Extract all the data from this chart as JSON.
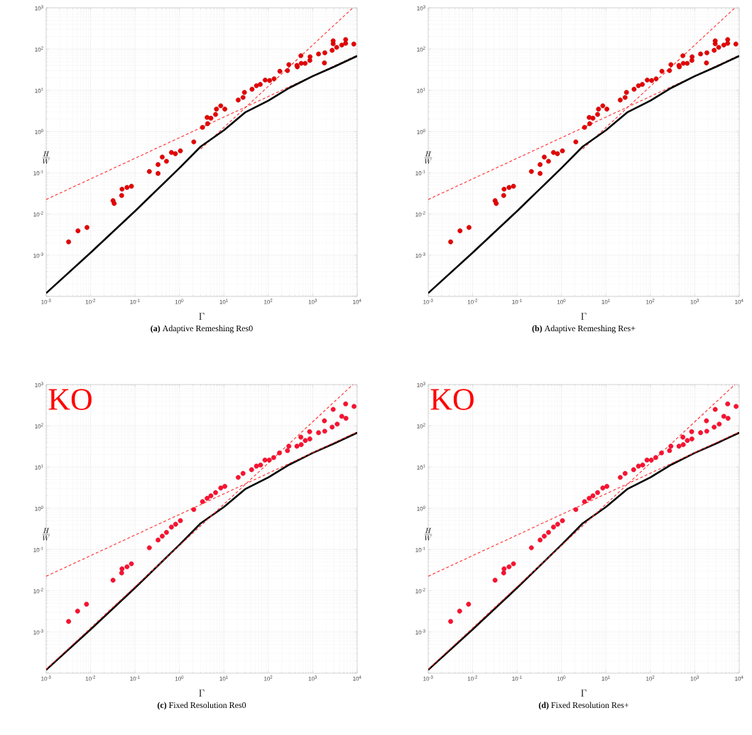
{
  "chart_data": [
    {
      "type": "scatter",
      "title": "**(a)** Adaptive Remeshing Res0",
      "xlabel": "\\Gamma",
      "ylabel": "\\frac{H}{W}",
      "log": "xy",
      "grid": true,
      "marker": "circle",
      "xlim": [
        0.001,
        10000
      ],
      "ylim": [
        0.0001,
        1000
      ],
      "xticks": [
        {
          "value": 0.001,
          "label": "10$^{-3}$"
        },
        {
          "value": 0.01,
          "label": "10$^{-2}$"
        },
        {
          "value": 0.1,
          "label": "10$^{-1}$"
        },
        {
          "value": 1,
          "label": "10$^{0}$"
        },
        {
          "value": 10,
          "label": "10$^{1}$"
        },
        {
          "value": 100,
          "label": "10$^{2}$"
        },
        {
          "value": 1000,
          "label": "10$^{3}$"
        },
        {
          "value": 10000,
          "label": "10$^{4}$"
        }
      ],
      "yticks": [
        {
          "value": 0.0001,
          "label": null
        },
        {
          "value": 0.001,
          "label": "10$^{-3}$"
        },
        {
          "value": 0.01,
          "label": "10$^{-2}$"
        },
        {
          "value": 0.1,
          "label": "10$^{-1}$"
        },
        {
          "value": 1,
          "label": "10$^{0}$"
        },
        {
          "value": 10,
          "label": "10$^{1}$"
        },
        {
          "value": 100,
          "label": "10$^{2}$"
        },
        {
          "value": 1000,
          "label": "10$^{3}$"
        }
      ],
      "series": [
        {
          "type": "line",
          "color": "#ff2a2a",
          "line_style": "dashed",
          "marker": "none",
          "x": [
            0.001,
            10000
          ],
          "values": [
            0.0224,
            70.7
          ]
        },
        {
          "type": "line",
          "color": "#ff2a2a",
          "line_style": "dashed",
          "marker": "none",
          "x": [
            3,
            8000
          ],
          "values": [
            0.375,
            1000
          ]
        },
        {
          "type": "line",
          "color": "#000000",
          "line_style": "solid",
          "marker": "none",
          "x": [
            0.001,
            0.01,
            0.1,
            1,
            3,
            10,
            30,
            100,
            300,
            1000,
            3000,
            10000
          ],
          "values": [
            0.00012,
            0.00115,
            0.0117,
            0.13,
            0.43,
            1.07,
            2.9,
            5.6,
            11.5,
            22,
            37,
            68
          ]
        },
        {
          "type": "scatter",
          "color": "#e60000",
          "x": [
            0.0032,
            0.0052,
            0.0083,
            0.032,
            0.034,
            0.051,
            0.05,
            0.066,
            0.083,
            0.21,
            0.33,
            0.33,
            0.41,
            0.51,
            0.66,
            0.81,
            1.05,
            2.1,
            3.3,
            4.2,
            4.3,
            5.1,
            6.5,
            6.8,
            8.5,
            10.5,
            21,
            27,
            29,
            43,
            54,
            66,
            85,
            107,
            135,
            182,
            270,
            290,
            450,
            440,
            540,
            550,
            675,
            860,
            870,
            1350,
            1830,
            1870,
            2730,
            2880,
            2880,
            3450,
            4500,
            5500,
            5500,
            8400
          ],
          "values": [
            0.0021,
            0.0039,
            0.0047,
            0.021,
            0.018,
            0.04,
            0.028,
            0.044,
            0.047,
            0.107,
            0.096,
            0.158,
            0.24,
            0.19,
            0.31,
            0.29,
            0.34,
            0.56,
            1.26,
            2.2,
            1.55,
            2.1,
            2.6,
            3.5,
            4.2,
            3.5,
            5.8,
            6.7,
            8.9,
            10.6,
            12.9,
            13.9,
            17.7,
            17.3,
            19,
            29,
            30,
            42,
            37,
            40,
            69,
            45,
            45,
            53,
            65,
            76,
            46,
            81,
            93,
            134,
            158,
            110,
            125,
            170,
            138,
            132
          ]
        }
      ]
    },
    {
      "type": "scatter",
      "title": "**(b)** Adaptive Remeshing Res+",
      "xlabel": "\\Gamma",
      "ylabel": "\\frac{H}{W}",
      "log": "xy",
      "grid": true,
      "marker": "circle",
      "xlim": [
        0.001,
        10000
      ],
      "ylim": [
        0.0001,
        1000
      ],
      "xticks": [
        {
          "value": 0.001,
          "label": "10$^{-3}$"
        },
        {
          "value": 0.01,
          "label": "10$^{-2}$"
        },
        {
          "value": 0.1,
          "label": "10$^{-1}$"
        },
        {
          "value": 1,
          "label": "10$^{0}$"
        },
        {
          "value": 10,
          "label": "10$^{1}$"
        },
        {
          "value": 100,
          "label": "10$^{2}$"
        },
        {
          "value": 1000,
          "label": "10$^{3}$"
        },
        {
          "value": 10000,
          "label": "10$^{4}$"
        }
      ],
      "yticks": [
        {
          "value": 0.0001,
          "label": null
        },
        {
          "value": 0.001,
          "label": "10$^{-3}$"
        },
        {
          "value": 0.01,
          "label": "10$^{-2}$"
        },
        {
          "value": 0.1,
          "label": "10$^{-1}$"
        },
        {
          "value": 1,
          "label": "10$^{0}$"
        },
        {
          "value": 10,
          "label": "10$^{1}$"
        },
        {
          "value": 100,
          "label": "10$^{2}$"
        },
        {
          "value": 1000,
          "label": "10$^{3}$"
        }
      ],
      "series": [
        {
          "type": "line",
          "color": "#ff2a2a",
          "line_style": "dashed",
          "marker": "none",
          "x": [
            0.001,
            10000
          ],
          "values": [
            0.0224,
            70.7
          ]
        },
        {
          "type": "line",
          "color": "#ff2a2a",
          "line_style": "dashed",
          "marker": "none",
          "x": [
            3,
            8000
          ],
          "values": [
            0.375,
            1000
          ]
        },
        {
          "type": "line",
          "color": "#000000",
          "line_style": "solid",
          "marker": "none",
          "x": [
            0.001,
            0.01,
            0.1,
            1,
            3,
            10,
            30,
            100,
            300,
            1000,
            3000,
            10000
          ],
          "values": [
            0.00012,
            0.00115,
            0.0117,
            0.13,
            0.43,
            1.07,
            2.9,
            5.6,
            11.5,
            22,
            37,
            68
          ]
        },
        {
          "type": "scatter",
          "color": "#e60000",
          "x": [
            0.0032,
            0.0052,
            0.0083,
            0.032,
            0.034,
            0.051,
            0.05,
            0.066,
            0.083,
            0.21,
            0.33,
            0.33,
            0.41,
            0.51,
            0.66,
            0.81,
            1.05,
            2.1,
            3.3,
            4.2,
            4.3,
            5.1,
            6.5,
            6.8,
            8.5,
            10.5,
            21,
            27,
            29,
            43,
            54,
            66,
            85,
            107,
            135,
            182,
            270,
            290,
            450,
            440,
            540,
            550,
            675,
            860,
            870,
            1350,
            1830,
            1870,
            2730,
            2880,
            2880,
            3450,
            4500,
            5500,
            5500,
            8400
          ],
          "values": [
            0.0021,
            0.0039,
            0.0047,
            0.021,
            0.018,
            0.04,
            0.028,
            0.044,
            0.047,
            0.107,
            0.096,
            0.158,
            0.24,
            0.19,
            0.31,
            0.29,
            0.34,
            0.56,
            1.26,
            2.2,
            1.55,
            2.1,
            2.6,
            3.5,
            4.2,
            3.5,
            5.8,
            6.7,
            8.9,
            10.6,
            12.9,
            13.9,
            17.7,
            17.3,
            19,
            29,
            30,
            42,
            37,
            40,
            69,
            45,
            45,
            53,
            65,
            76,
            46,
            81,
            93,
            134,
            158,
            110,
            125,
            170,
            138,
            132
          ]
        }
      ]
    },
    {
      "type": "scatter",
      "title": "**(c)** Fixed Resolution Res0",
      "xlabel": "\\Gamma",
      "ylabel": "\\frac{H}{W}",
      "log": "xy",
      "grid": true,
      "marker": "circle",
      "annotations": [
        "KO"
      ],
      "xlim": [
        0.001,
        10000
      ],
      "ylim": [
        0.0001,
        1000
      ],
      "xticks": [
        {
          "value": 0.001,
          "label": "10$^{-3}$"
        },
        {
          "value": 0.01,
          "label": "10$^{-2}$"
        },
        {
          "value": 0.1,
          "label": "10$^{-1}$"
        },
        {
          "value": 1,
          "label": "10$^{0}$"
        },
        {
          "value": 10,
          "label": "10$^{1}$"
        },
        {
          "value": 100,
          "label": "10$^{2}$"
        },
        {
          "value": 1000,
          "label": "10$^{3}$"
        },
        {
          "value": 10000,
          "label": "10$^{4}$"
        }
      ],
      "yticks": [
        {
          "value": 0.0001,
          "label": null
        },
        {
          "value": 0.001,
          "label": "10$^{-3}$"
        },
        {
          "value": 0.01,
          "label": "10$^{-2}$"
        },
        {
          "value": 0.1,
          "label": "10$^{-1}$"
        },
        {
          "value": 1,
          "label": "10$^{0}$"
        },
        {
          "value": 10,
          "label": "10$^{1}$"
        },
        {
          "value": 100,
          "label": "10$^{2}$"
        },
        {
          "value": 1000,
          "label": "10$^{3}$"
        }
      ],
      "series": [
        {
          "type": "line",
          "color": "#000000",
          "line_style": "solid",
          "marker": "none",
          "x": [
            0.001,
            0.01,
            0.1,
            1,
            3,
            10,
            30,
            100,
            300,
            1000,
            3000,
            10000
          ],
          "values": [
            0.00012,
            0.00115,
            0.0117,
            0.13,
            0.43,
            1.07,
            2.9,
            5.6,
            11.5,
            22,
            37,
            68
          ]
        },
        {
          "type": "line",
          "color": "#ff2a2a",
          "line_style": "dashed",
          "marker": "none",
          "x": [
            0.001,
            10000
          ],
          "values": [
            0.0224,
            70.7
          ]
        },
        {
          "type": "line",
          "color": "#ff2a2a",
          "line_style": "dashed",
          "marker": "none",
          "x": [
            0.001,
            8000
          ],
          "values": [
            0.000125,
            1000
          ]
        },
        {
          "type": "scatter",
          "color": "#ff1030",
          "x": [
            0.0032,
            0.0051,
            0.0081,
            0.032,
            0.05,
            0.051,
            0.066,
            0.083,
            0.21,
            0.33,
            0.41,
            0.51,
            0.66,
            0.82,
            1.05,
            2.1,
            3.3,
            4.2,
            5.1,
            6.5,
            8.5,
            10.5,
            21,
            27,
            42,
            54,
            67,
            84,
            105,
            132,
            178,
            270,
            290,
            440,
            540,
            550,
            680,
            860,
            850,
            1350,
            1830,
            1860,
            2730,
            2880,
            3550,
            4500,
            5500,
            5600,
            8500
          ],
          "values": [
            0.0018,
            0.0032,
            0.0047,
            0.018,
            0.027,
            0.034,
            0.038,
            0.045,
            0.11,
            0.17,
            0.21,
            0.26,
            0.35,
            0.41,
            0.5,
            0.93,
            1.45,
            1.74,
            2.0,
            2.4,
            3.1,
            3.4,
            5.6,
            7.0,
            8.6,
            10.5,
            11.2,
            14.8,
            14.8,
            17,
            22,
            25,
            32,
            32,
            53,
            35,
            44,
            48,
            72,
            68,
            132,
            74,
            93,
            250,
            110,
            170,
            340,
            152,
            295
          ]
        }
      ]
    },
    {
      "type": "scatter",
      "title": "**(d)** Fixed Resolution Res+",
      "xlabel": "\\Gamma",
      "ylabel": "\\frac{H}{W}",
      "log": "xy",
      "grid": true,
      "marker": "circle",
      "annotations": [
        "KO"
      ],
      "xlim": [
        0.001,
        10000
      ],
      "ylim": [
        0.0001,
        1000
      ],
      "xticks": [
        {
          "value": 0.001,
          "label": "10$^{-3}$"
        },
        {
          "value": 0.01,
          "label": "10$^{-2}$"
        },
        {
          "value": 0.1,
          "label": "10$^{-1}$"
        },
        {
          "value": 1,
          "label": "10$^{0}$"
        },
        {
          "value": 10,
          "label": "10$^{1}$"
        },
        {
          "value": 100,
          "label": "10$^{2}$"
        },
        {
          "value": 1000,
          "label": "10$^{3}$"
        },
        {
          "value": 10000,
          "label": "10$^{4}$"
        }
      ],
      "yticks": [
        {
          "value": 0.0001,
          "label": null
        },
        {
          "value": 0.001,
          "label": "10$^{-3}$"
        },
        {
          "value": 0.01,
          "label": "10$^{-2}$"
        },
        {
          "value": 0.1,
          "label": "10$^{-1}$"
        },
        {
          "value": 1,
          "label": "10$^{0}$"
        },
        {
          "value": 10,
          "label": "10$^{1}$"
        },
        {
          "value": 100,
          "label": "10$^{2}$"
        },
        {
          "value": 1000,
          "label": "10$^{3}$"
        }
      ],
      "series": [
        {
          "type": "line",
          "color": "#000000",
          "line_style": "solid",
          "marker": "none",
          "x": [
            0.001,
            0.01,
            0.1,
            1,
            3,
            10,
            30,
            100,
            300,
            1000,
            3000,
            10000
          ],
          "values": [
            0.00012,
            0.00115,
            0.0117,
            0.13,
            0.43,
            1.07,
            2.9,
            5.6,
            11.5,
            22,
            37,
            68
          ]
        },
        {
          "type": "line",
          "color": "#ff2a2a",
          "line_style": "dashed",
          "marker": "none",
          "x": [
            0.001,
            10000
          ],
          "values": [
            0.0224,
            70.7
          ]
        },
        {
          "type": "line",
          "color": "#ff2a2a",
          "line_style": "dashed",
          "marker": "none",
          "x": [
            0.001,
            8000
          ],
          "values": [
            0.000125,
            1000
          ]
        },
        {
          "type": "scatter",
          "color": "#ff1030",
          "x": [
            0.0032,
            0.0051,
            0.0081,
            0.032,
            0.05,
            0.051,
            0.066,
            0.083,
            0.21,
            0.33,
            0.41,
            0.51,
            0.66,
            0.82,
            1.05,
            2.1,
            3.3,
            4.2,
            5.1,
            6.5,
            8.5,
            10.5,
            21,
            27,
            42,
            54,
            67,
            84,
            105,
            132,
            178,
            270,
            290,
            440,
            540,
            550,
            680,
            860,
            850,
            1350,
            1830,
            1860,
            2730,
            2880,
            3550,
            4500,
            5500,
            5600,
            8500
          ],
          "values": [
            0.0018,
            0.0032,
            0.0047,
            0.018,
            0.027,
            0.034,
            0.038,
            0.045,
            0.11,
            0.17,
            0.21,
            0.26,
            0.35,
            0.41,
            0.5,
            0.93,
            1.45,
            1.74,
            2.0,
            2.4,
            3.1,
            3.4,
            5.6,
            7.0,
            8.6,
            10.5,
            11.2,
            14.8,
            14.8,
            17,
            22,
            25,
            32,
            32,
            53,
            35,
            44,
            48,
            72,
            68,
            132,
            74,
            93,
            250,
            110,
            170,
            340,
            152,
            295
          ]
        }
      ]
    }
  ]
}
